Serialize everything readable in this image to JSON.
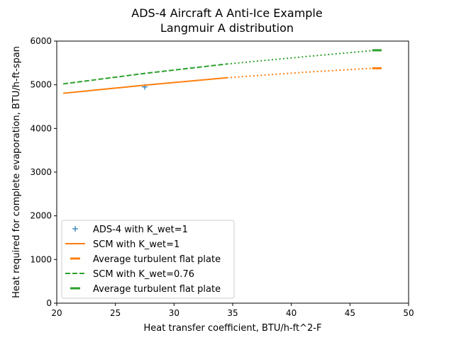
{
  "chart_data": {
    "type": "line",
    "title": "ADS-4 Aircraft A Anti-Ice Example",
    "subtitle": "Langmuir A distribution",
    "xlabel": "Heat transfer coefficient, BTU/h-ft^2-F",
    "ylabel": "Heat required for complete evaporation, BTU/h-ft-span",
    "xlim": [
      20,
      50
    ],
    "ylim": [
      0,
      6000
    ],
    "xticks": [
      20,
      25,
      30,
      35,
      40,
      45,
      50
    ],
    "yticks": [
      0,
      1000,
      2000,
      3000,
      4000,
      5000,
      6000
    ],
    "grid": false,
    "legend_position": "lower-left",
    "series": [
      {
        "name": "ADS-4 with K_wet=1",
        "style": "marker-plus",
        "color": "#1f77b4",
        "x": [
          27.5
        ],
        "y": [
          4950
        ]
      },
      {
        "name": "SCM with K_wet=1",
        "style": "solid",
        "color": "#ff7f0e",
        "x": [
          20.55,
          27.5,
          34.5
        ],
        "y": [
          4805,
          4990,
          5160
        ]
      },
      {
        "name": "",
        "style": "dotted",
        "color": "#ff7f0e",
        "x": [
          34.5,
          41,
          47
        ],
        "y": [
          5160,
          5285,
          5380
        ]
      },
      {
        "name": "Average turbulent flat plate",
        "style": "thick",
        "color": "#ff7f0e",
        "x": [
          46.9,
          47.7
        ],
        "y": [
          5378,
          5378
        ]
      },
      {
        "name": "SCM with K_wet=0.76",
        "style": "dashed",
        "color": "#2ca02c",
        "x": [
          20.55,
          27.5,
          34.5
        ],
        "y": [
          5020,
          5260,
          5475
        ]
      },
      {
        "name": "",
        "style": "dotted",
        "color": "#2ca02c",
        "x": [
          34.5,
          41,
          47
        ],
        "y": [
          5475,
          5640,
          5785
        ]
      },
      {
        "name": "Average turbulent flat plate",
        "style": "thick",
        "color": "#2ca02c",
        "x": [
          46.9,
          47.7
        ],
        "y": [
          5790,
          5790
        ]
      }
    ]
  }
}
